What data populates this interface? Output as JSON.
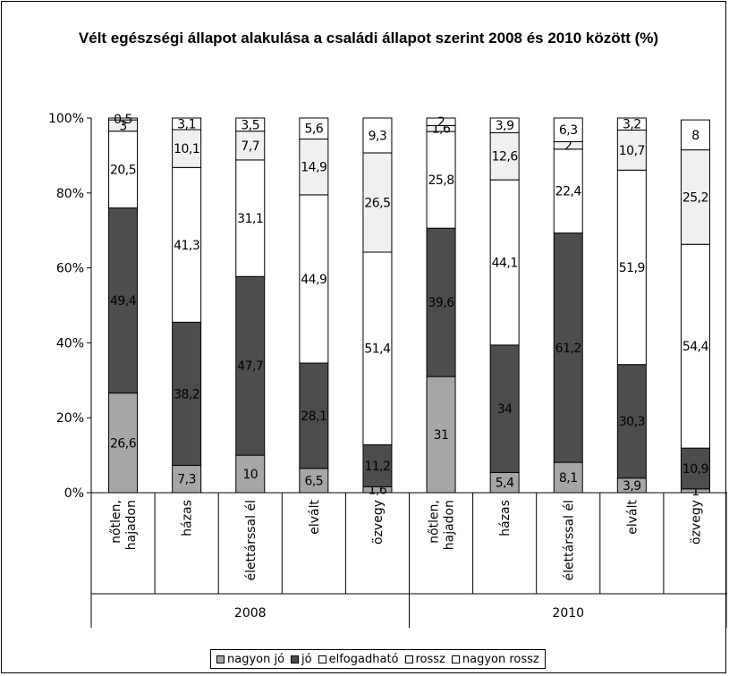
{
  "chart_data": {
    "type": "bar",
    "stacked": true,
    "percent_stacked": true,
    "title": "Vélt egészségi állapot alakulása a családi állapot szerint 2008 és 2010 között (%)",
    "ylim": [
      0,
      100
    ],
    "yticks": [
      "0%",
      "20%",
      "40%",
      "60%",
      "80%",
      "100%"
    ],
    "groups": [
      {
        "label": "2008",
        "categories": [
          "nőtlen, hajadon",
          "házas",
          "élettárssal él",
          "elvált",
          "özvegy"
        ]
      },
      {
        "label": "2010",
        "categories": [
          "nőtlen, hajadon",
          "házas",
          "élettárssal él",
          "elvált",
          "özvegy"
        ]
      }
    ],
    "series": [
      {
        "name": "nagyon jó",
        "color": "#a6a6a6",
        "values": [
          26.6,
          7.3,
          10,
          6.5,
          1.6,
          31,
          5.4,
          8.1,
          3.9,
          1
        ]
      },
      {
        "name": "jó",
        "color": "#4d4d4d",
        "values": [
          49.4,
          38.2,
          47.7,
          28.1,
          11.2,
          39.6,
          34,
          61.2,
          30.3,
          10.9
        ]
      },
      {
        "name": "elfogadható",
        "color": "#ffffff",
        "values": [
          20.5,
          41.3,
          31.1,
          44.9,
          51.4,
          25.8,
          44.1,
          22.4,
          51.9,
          54.4
        ]
      },
      {
        "name": "rossz",
        "color": "#f0f0f0",
        "values": [
          3,
          10.1,
          7.7,
          14.9,
          26.5,
          1.6,
          12.6,
          2,
          10.7,
          25.2
        ]
      },
      {
        "name": "nagyon rossz",
        "color": "#ffffff",
        "values": [
          0.5,
          3.1,
          3.5,
          5.6,
          9.3,
          2,
          3.9,
          6.3,
          3.2,
          8
        ]
      }
    ],
    "legend_position": "bottom",
    "grid": false
  }
}
